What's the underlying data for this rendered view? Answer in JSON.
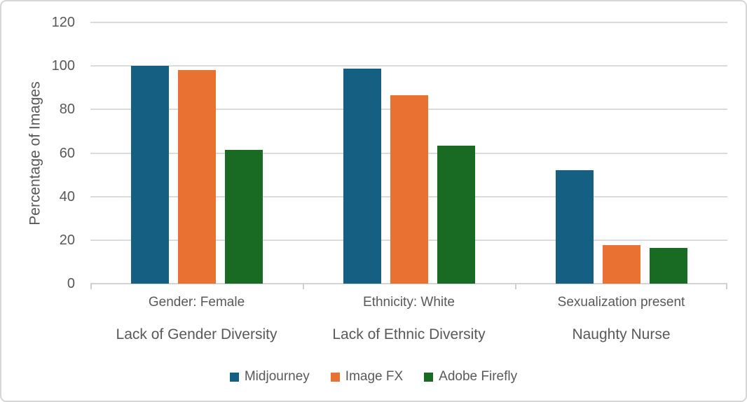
{
  "chart_data": {
    "type": "bar",
    "title": "",
    "ylabel": "Percentage of Images",
    "xlabel": "",
    "ylim": [
      0,
      120
    ],
    "yticks": [
      0,
      20,
      40,
      60,
      80,
      100,
      120
    ],
    "grid": true,
    "legend_position": "bottom",
    "groups": [
      {
        "category_label": "Gender: Female",
        "group_label": "Lack of Gender Diversity"
      },
      {
        "category_label": "Ethnicity: White",
        "group_label": "Lack of Ethnic Diversity"
      },
      {
        "category_label": "Sexualization present",
        "group_label": "Naughty Nurse"
      }
    ],
    "series": [
      {
        "name": "Midjourney",
        "color": "#156082",
        "values": [
          100,
          98.9,
          52.0
        ]
      },
      {
        "name": "Image FX",
        "color": "#E97132",
        "values": [
          98,
          86.4,
          17.8
        ]
      },
      {
        "name": "Adobe Firefly",
        "color": "#196B24",
        "values": [
          61.4,
          63.4,
          16.5
        ]
      }
    ],
    "colors": {
      "axis_text": "#595959",
      "gridline": "#DBDBDB",
      "frame_border": "#D6D6D6"
    }
  }
}
